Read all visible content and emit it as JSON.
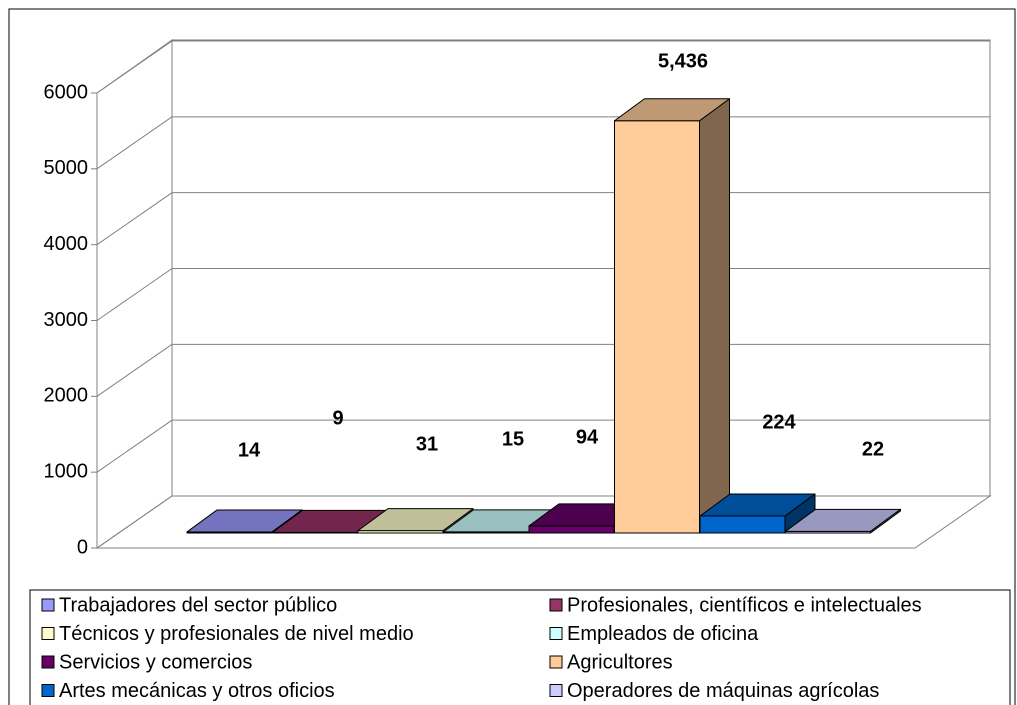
{
  "chart_data": {
    "type": "bar3d",
    "series": [
      {
        "name": "Trabajadores del sector público",
        "color": "#9999ff",
        "values": [
          14
        ],
        "value_labels": [
          "14"
        ]
      },
      {
        "name": "Profesionales, científicos e intelectuales",
        "color": "#993366",
        "values": [
          9
        ],
        "value_labels": [
          "9"
        ]
      },
      {
        "name": "Técnicos y profesionales de nivel medio",
        "color": "#ffffcc",
        "values": [
          31
        ],
        "value_labels": [
          "31"
        ]
      },
      {
        "name": "Empleados de oficina",
        "color": "#ccffff",
        "values": [
          15
        ],
        "value_labels": [
          "15"
        ]
      },
      {
        "name": "Servicios y comercios",
        "color": "#660066",
        "values": [
          94
        ],
        "value_labels": [
          "94"
        ]
      },
      {
        "name": "Agricultores",
        "color": "#ffcc99",
        "values": [
          5436
        ],
        "value_labels": [
          "5,436"
        ]
      },
      {
        "name": "Artes mecánicas y otros oficios",
        "color": "#0066cc",
        "values": [
          224
        ],
        "value_labels": [
          "224"
        ]
      },
      {
        "name": "Operadores de máquinas agrícolas",
        "color": "#ccccff",
        "values": [
          22
        ],
        "value_labels": [
          "22"
        ]
      }
    ],
    "ylim": [
      0,
      6000
    ],
    "yticks": [
      0,
      1000,
      2000,
      3000,
      4000,
      5000,
      6000
    ],
    "grid": true,
    "legend": "bottom"
  }
}
